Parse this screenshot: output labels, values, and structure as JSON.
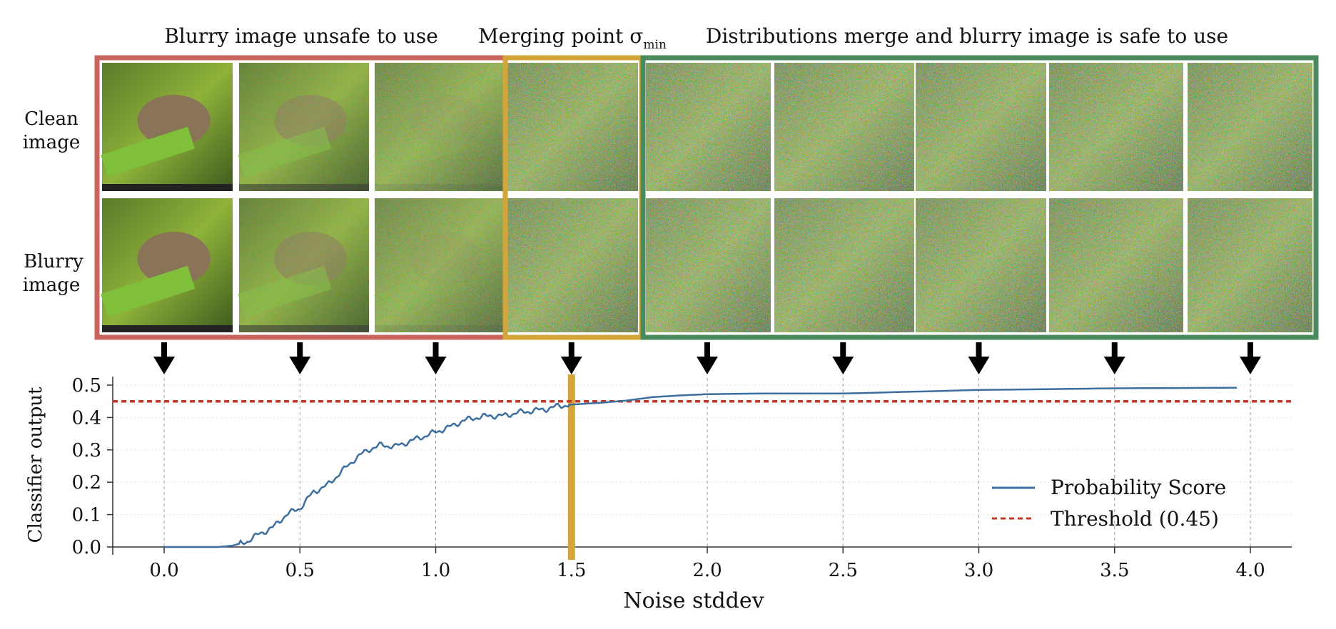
{
  "region_titles": {
    "unsafe": "Blurry image unsafe to use",
    "merge_prefix": "Merging point σ",
    "merge_sub": "min",
    "safe": "Distributions merge and blurry image is safe to use"
  },
  "row_labels": {
    "clean_line1": "Clean",
    "clean_line2": "image",
    "blurry_line1": "Blurry",
    "blurry_line2": "image"
  },
  "colors": {
    "unsafe_box": "#c9645e",
    "merge_box": "#d4a63a",
    "safe_box": "#4a8a5c",
    "line": "#3c6e9f",
    "threshold": "#c0392b",
    "merge_bar": "#d4a63a"
  },
  "tiles": {
    "noise_levels": [
      0.0,
      0.5,
      1.0,
      1.5,
      2.0,
      2.5,
      3.0,
      3.5,
      4.0
    ]
  },
  "chart_data": {
    "type": "line",
    "xlabel": "Noise stddev",
    "ylabel": "Classifier output",
    "xlim": [
      -0.2,
      4.15
    ],
    "ylim": [
      0.0,
      0.52
    ],
    "xticks": [
      "0.0",
      "0.5",
      "1.0",
      "1.5",
      "2.0",
      "2.5",
      "3.0",
      "3.5",
      "4.0"
    ],
    "xtick_values": [
      0.0,
      0.5,
      1.0,
      1.5,
      2.0,
      2.5,
      3.0,
      3.5,
      4.0
    ],
    "yticks": [
      "0.0",
      "0.1",
      "0.2",
      "0.3",
      "0.4",
      "0.5"
    ],
    "ytick_values": [
      0.0,
      0.1,
      0.2,
      0.3,
      0.4,
      0.5
    ],
    "merge_point": 1.5,
    "series": [
      {
        "name": "Probability Score",
        "x": [
          0.0,
          0.1,
          0.2,
          0.25,
          0.3,
          0.35,
          0.4,
          0.45,
          0.5,
          0.55,
          0.6,
          0.65,
          0.7,
          0.75,
          0.8,
          0.85,
          0.9,
          0.95,
          1.0,
          1.05,
          1.1,
          1.15,
          1.2,
          1.25,
          1.3,
          1.35,
          1.4,
          1.45,
          1.5,
          1.6,
          1.7,
          1.8,
          1.9,
          2.0,
          2.2,
          2.5,
          3.0,
          3.5,
          3.95
        ],
        "values": [
          0.0,
          0.0,
          0.0,
          0.004,
          0.015,
          0.04,
          0.06,
          0.1,
          0.12,
          0.17,
          0.19,
          0.23,
          0.27,
          0.3,
          0.315,
          0.31,
          0.325,
          0.34,
          0.355,
          0.37,
          0.39,
          0.4,
          0.405,
          0.405,
          0.415,
          0.42,
          0.425,
          0.435,
          0.44,
          0.445,
          0.452,
          0.463,
          0.468,
          0.472,
          0.474,
          0.474,
          0.485,
          0.49,
          0.492
        ]
      },
      {
        "name": "Threshold (0.45)",
        "value": 0.45
      }
    ],
    "legend": [
      "Probability Score",
      "Threshold (0.45)"
    ],
    "legend_placement": "lower-right",
    "grid": "vertical dashed at x ticks"
  }
}
